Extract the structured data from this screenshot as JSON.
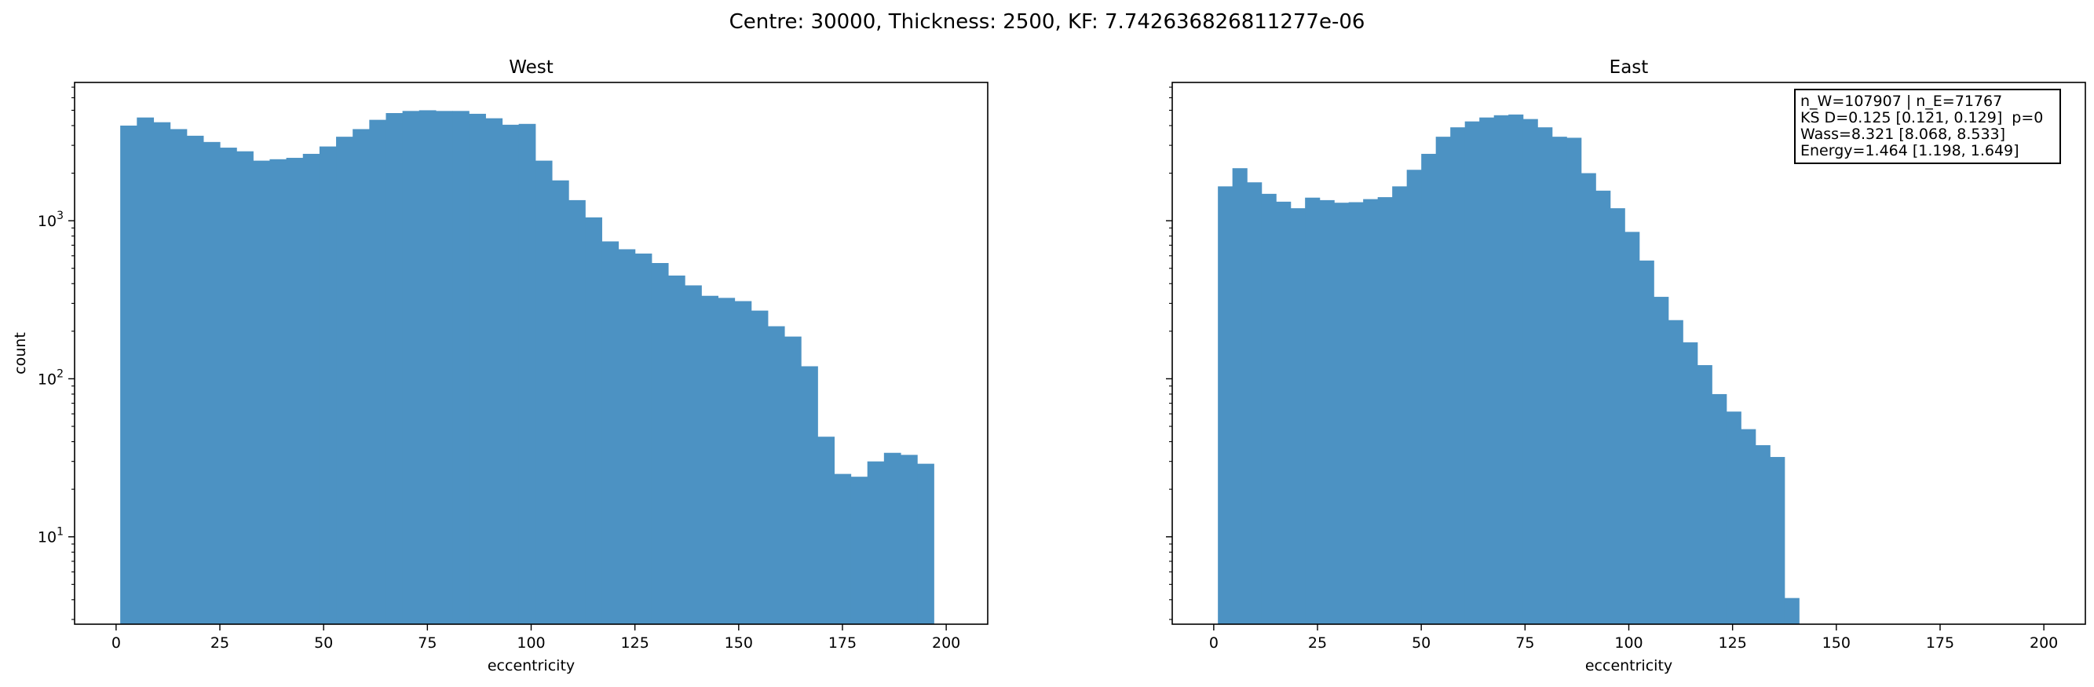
{
  "suptitle": "Centre: 30000, Thickness: 2500, KF: 7.742636826811277e-06",
  "chart_data": [
    {
      "type": "bar",
      "title": "West",
      "xlabel": "eccentricity",
      "ylabel": "count",
      "yscale": "log",
      "xlim": [
        -10,
        210
      ],
      "ylim": [
        2.8,
        7500
      ],
      "xticks": [
        "0",
        "25",
        "50",
        "75",
        "100",
        "125",
        "150",
        "175",
        "200"
      ],
      "yticks": [
        "10^1",
        "10^2",
        "10^3"
      ],
      "bin_start": 1,
      "bin_width": 4,
      "values": [
        4000,
        4500,
        4200,
        3800,
        3450,
        3150,
        2900,
        2750,
        2400,
        2450,
        2500,
        2650,
        2950,
        3400,
        3800,
        4350,
        4800,
        4950,
        5000,
        4950,
        4950,
        4750,
        4450,
        4050,
        4100,
        2400,
        1800,
        1350,
        1050,
        740,
        660,
        620,
        540,
        450,
        390,
        335,
        325,
        310,
        270,
        215,
        185,
        120,
        43,
        25,
        24,
        30,
        34,
        33,
        29
      ],
      "color": "#4c92c3"
    },
    {
      "type": "bar",
      "title": "East",
      "xlabel": "eccentricity",
      "ylabel": "",
      "yscale": "log",
      "xlim": [
        -10,
        210
      ],
      "ylim": [
        2.8,
        7500
      ],
      "xticks": [
        "0",
        "25",
        "50",
        "75",
        "100",
        "125",
        "150",
        "175",
        "200"
      ],
      "bin_start": 1,
      "bin_width": 3.5,
      "values": [
        1650,
        2150,
        1750,
        1480,
        1320,
        1200,
        1400,
        1350,
        1300,
        1310,
        1370,
        1410,
        1650,
        2100,
        2650,
        3400,
        3900,
        4250,
        4500,
        4650,
        4700,
        4400,
        3900,
        3400,
        3350,
        2000,
        1550,
        1200,
        850,
        560,
        330,
        235,
        170,
        122,
        80,
        62,
        48,
        38,
        32,
        4.1
      ],
      "color": "#4c92c3"
    }
  ],
  "stats_box": {
    "lines": [
      "n_W=107907 | n_E=71767",
      "KS D=0.125 [0.121, 0.129]  p=0",
      "Wass=8.321 [8.068, 8.533]",
      "Energy=1.464 [1.198, 1.649]"
    ]
  }
}
